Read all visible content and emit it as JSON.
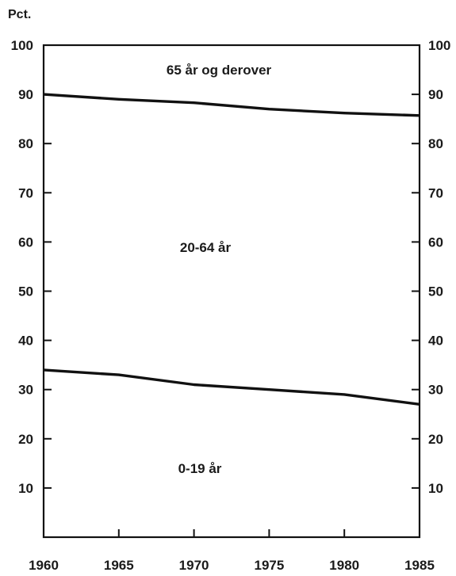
{
  "chart_data": {
    "type": "area",
    "stacked": true,
    "unit_label": "Pct.",
    "x": [
      1960,
      1965,
      1970,
      1975,
      1980,
      1985
    ],
    "xlim": [
      1960,
      1985
    ],
    "ylim": [
      0,
      100
    ],
    "x_ticks": [
      1960,
      1965,
      1970,
      1975,
      1980,
      1985
    ],
    "y_ticks_left": [
      10,
      20,
      30,
      40,
      50,
      60,
      70,
      80,
      90,
      100
    ],
    "y_ticks_right": [
      10,
      20,
      30,
      40,
      50,
      60,
      70,
      80,
      90,
      100
    ],
    "boundaries": [
      {
        "values": [
          34,
          33,
          31,
          30,
          29,
          27
        ]
      },
      {
        "values": [
          90,
          89,
          88.3,
          87,
          86.2,
          85.7
        ]
      }
    ],
    "regions": [
      {
        "label": "65 år og derover"
      },
      {
        "label": "20-64 år"
      },
      {
        "label": "0-19 år"
      }
    ],
    "grid": false,
    "legend": "none"
  }
}
